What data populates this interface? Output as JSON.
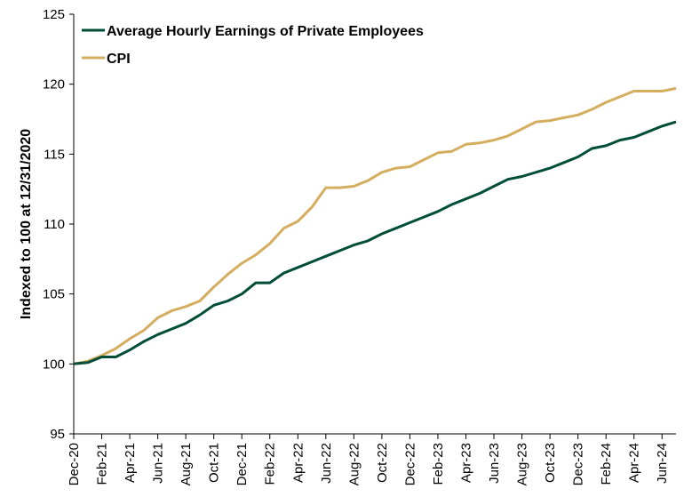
{
  "chart_data": {
    "type": "line",
    "title": "",
    "xlabel": "",
    "ylabel": "Indexed to 100 at 12/31/2020",
    "ylim": [
      95,
      125
    ],
    "yticks": [
      95,
      100,
      105,
      110,
      115,
      120,
      125
    ],
    "grid": false,
    "legend_position": "top-left",
    "x": [
      "Dec-20",
      "Jan-21",
      "Feb-21",
      "Mar-21",
      "Apr-21",
      "May-21",
      "Jun-21",
      "Jul-21",
      "Aug-21",
      "Sep-21",
      "Oct-21",
      "Nov-21",
      "Dec-21",
      "Jan-22",
      "Feb-22",
      "Mar-22",
      "Apr-22",
      "May-22",
      "Jun-22",
      "Jul-22",
      "Aug-22",
      "Sep-22",
      "Oct-22",
      "Nov-22",
      "Dec-22",
      "Jan-23",
      "Feb-23",
      "Mar-23",
      "Apr-23",
      "May-23",
      "Jun-23",
      "Jul-23",
      "Aug-23",
      "Sep-23",
      "Oct-23",
      "Nov-23",
      "Dec-23",
      "Jan-24",
      "Feb-24",
      "Mar-24",
      "Apr-24",
      "May-24",
      "Jun-24",
      "Jul-24"
    ],
    "x_tick_labels": [
      "Dec-20",
      "Feb-21",
      "Apr-21",
      "Jun-21",
      "Aug-21",
      "Oct-21",
      "Dec-21",
      "Feb-22",
      "Apr-22",
      "Jun-22",
      "Aug-22",
      "Oct-22",
      "Dec-22",
      "Feb-23",
      "Apr-23",
      "Jun-23",
      "Aug-23",
      "Oct-23",
      "Dec-23",
      "Feb-24",
      "Apr-24",
      "Jun-24"
    ],
    "series": [
      {
        "name": "Average Hourly Earnings of Private Employees",
        "color": "#004d38",
        "values": [
          100.0,
          100.1,
          100.5,
          100.5,
          101.0,
          101.6,
          102.1,
          102.5,
          102.9,
          103.5,
          104.2,
          104.5,
          105.0,
          105.8,
          105.8,
          106.5,
          106.9,
          107.3,
          107.7,
          108.1,
          108.5,
          108.8,
          109.3,
          109.7,
          110.1,
          110.5,
          110.9,
          111.4,
          111.8,
          112.2,
          112.7,
          113.2,
          113.4,
          113.7,
          114.0,
          114.4,
          114.8,
          115.4,
          115.6,
          116.0,
          116.2,
          116.6,
          117.0,
          117.3
        ]
      },
      {
        "name": "CPI",
        "color": "#d4ad5f",
        "values": [
          100.0,
          100.2,
          100.6,
          101.1,
          101.8,
          102.4,
          103.3,
          103.8,
          104.1,
          104.5,
          105.5,
          106.4,
          107.2,
          107.8,
          108.6,
          109.7,
          110.2,
          111.2,
          112.6,
          112.6,
          112.7,
          113.1,
          113.7,
          114.0,
          114.1,
          114.6,
          115.1,
          115.2,
          115.7,
          115.8,
          116.0,
          116.3,
          116.8,
          117.3,
          117.4,
          117.6,
          117.8,
          118.2,
          118.7,
          119.1,
          119.5,
          119.5,
          119.5,
          119.7
        ]
      }
    ]
  }
}
